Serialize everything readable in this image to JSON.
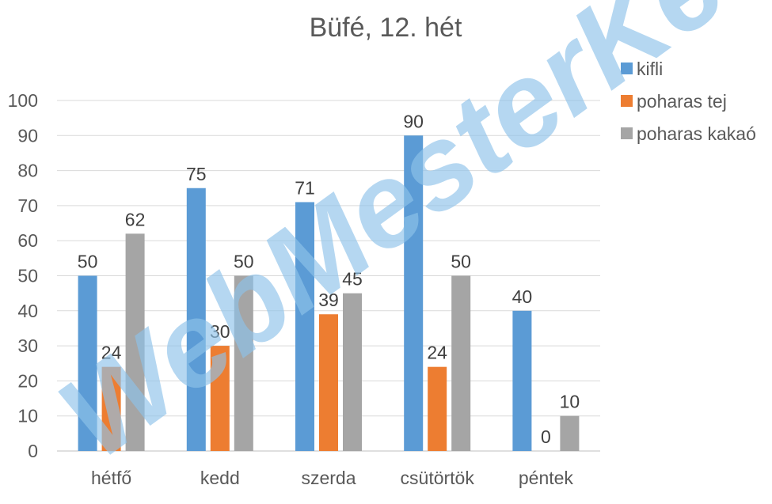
{
  "chart_data": {
    "type": "bar",
    "title": "Büfé, 12. hét",
    "categories": [
      "hétfő",
      "kedd",
      "szerda",
      "csütörtök",
      "péntek"
    ],
    "series": [
      {
        "name": "kifli",
        "color": "#5b9bd5",
        "values": [
          50,
          75,
          71,
          90,
          40
        ]
      },
      {
        "name": "poharas tej",
        "color": "#ed7d31",
        "values": [
          24,
          30,
          39,
          24,
          0
        ]
      },
      {
        "name": "poharas kakaó",
        "color": "#a5a5a5",
        "values": [
          62,
          50,
          45,
          50,
          10
        ]
      }
    ],
    "ylim": [
      0,
      100
    ],
    "yticks": [
      0,
      10,
      20,
      30,
      40,
      50,
      60,
      70,
      80,
      90,
      100
    ],
    "grid": true,
    "legend_position": "top-right",
    "data_labels": true
  },
  "watermark": "WebMesterKe"
}
